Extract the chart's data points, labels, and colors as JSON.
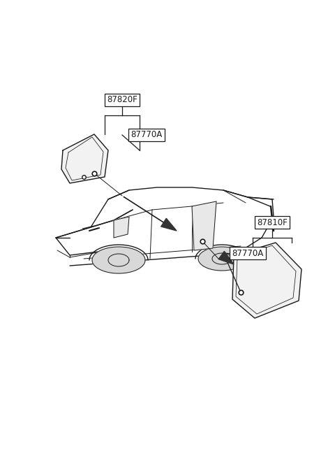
{
  "bg_color": "#ffffff",
  "line_color": "#1a1a1a",
  "fig_width": 4.8,
  "fig_height": 6.55,
  "dpi": 100,
  "label_87820F": "87820F",
  "label_87770A": "87770A",
  "label_87810F": "87810F",
  "label_87770A2": "87770A",
  "lw_car": 1.0,
  "lw_detail": 0.7,
  "lw_label": 0.8
}
